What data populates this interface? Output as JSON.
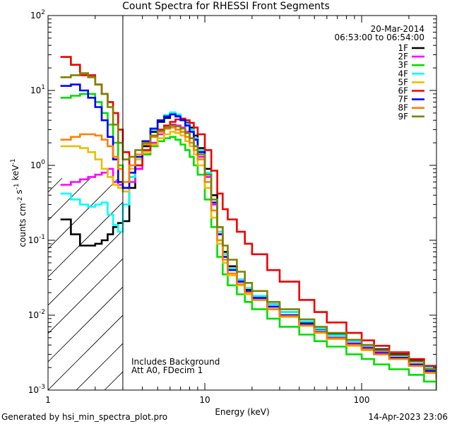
{
  "chart_data": {
    "type": "line",
    "title": "Count Spectra for RHESSI Front Segments",
    "xlabel": "Energy (keV)",
    "ylabel": "counts cm-2 s-1 keV-1",
    "xscale": "log",
    "yscale": "log",
    "xlim": [
      1,
      300
    ],
    "ylim": [
      0.001,
      100
    ],
    "xtick_labels": [
      "1",
      "10",
      "100"
    ],
    "ytick_labels": [
      "10^-3",
      "10^-2",
      "10^-1",
      "10^0",
      "10^1",
      "10^2"
    ],
    "date": "20-Mar-2014",
    "time_range": "06:53:00 to 06:54:00",
    "hatched_region_keV": [
      1,
      3
    ],
    "legend": [
      {
        "name": "1F",
        "color": "#000000"
      },
      {
        "name": "2F",
        "color": "#ff00ff"
      },
      {
        "name": "3F",
        "color": "#00dd00"
      },
      {
        "name": "4F",
        "color": "#00ffff"
      },
      {
        "name": "5F",
        "color": "#e8c000"
      },
      {
        "name": "6F",
        "color": "#ee0000"
      },
      {
        "name": "7F",
        "color": "#0000ff"
      },
      {
        "name": "8F",
        "color": "#ff8000"
      },
      {
        "name": "9F",
        "color": "#808000"
      }
    ],
    "annotations": [
      "Includes Background",
      "Att A0, FDecim 1"
    ],
    "series": [
      {
        "name": "1F",
        "x": [
          1.2,
          1.4,
          1.6,
          1.8,
          2.0,
          2.2,
          2.4,
          2.6,
          2.8,
          3.0,
          3.3,
          3.6,
          4.0,
          4.5,
          5.0,
          5.5,
          6.0,
          6.5,
          7.0,
          7.5,
          8.0,
          8.5,
          9.0,
          10,
          11,
          12,
          13,
          14,
          16,
          18,
          20,
          25,
          30,
          40,
          50,
          60,
          80,
          100,
          120,
          150,
          200,
          250,
          300
        ],
        "y": [
          0.19,
          0.12,
          0.085,
          0.085,
          0.09,
          0.1,
          0.12,
          0.15,
          0.17,
          0.18,
          0.5,
          0.9,
          1.8,
          2.8,
          3.8,
          4.3,
          4.8,
          4.6,
          4.2,
          3.7,
          3.2,
          2.5,
          1.7,
          0.9,
          0.4,
          0.15,
          0.07,
          0.045,
          0.03,
          0.022,
          0.018,
          0.014,
          0.011,
          0.008,
          0.0065,
          0.0055,
          0.0045,
          0.004,
          0.0035,
          0.003,
          0.0025,
          0.002,
          0.0015
        ]
      },
      {
        "name": "2F",
        "x": [
          1.2,
          1.4,
          1.6,
          1.8,
          2.0,
          2.2,
          2.4,
          2.6,
          2.8,
          3.0,
          3.3,
          3.6,
          4.0,
          4.5,
          5.0,
          5.5,
          6.0,
          6.5,
          7.0,
          7.5,
          8.0,
          8.5,
          9.0,
          10,
          11,
          12,
          13,
          14,
          16,
          18,
          20,
          25,
          30,
          40,
          50,
          60,
          80,
          100,
          120,
          150,
          200,
          250,
          300
        ],
        "y": [
          0.55,
          0.6,
          0.65,
          0.7,
          0.75,
          0.8,
          0.9,
          0.6,
          0.55,
          0.5,
          0.6,
          0.9,
          1.4,
          2.0,
          2.6,
          3.1,
          3.5,
          3.4,
          3.2,
          2.8,
          2.3,
          1.8,
          1.3,
          0.7,
          0.3,
          0.12,
          0.06,
          0.04,
          0.028,
          0.021,
          0.017,
          0.013,
          0.01,
          0.0075,
          0.006,
          0.005,
          0.0042,
          0.0037,
          0.0032,
          0.0027,
          0.0022,
          0.0018,
          0.0014
        ]
      },
      {
        "name": "3F",
        "x": [
          1.2,
          1.4,
          1.6,
          1.8,
          2.0,
          2.2,
          2.4,
          2.6,
          2.8,
          3.0,
          3.3,
          3.6,
          4.0,
          4.5,
          5.0,
          5.5,
          6.0,
          6.5,
          7.0,
          7.5,
          8.0,
          8.5,
          9.0,
          10,
          11,
          12,
          13,
          14,
          16,
          18,
          20,
          25,
          30,
          40,
          50,
          60,
          80,
          100,
          120,
          150,
          200,
          250,
          300
        ],
        "y": [
          8.0,
          8.5,
          9.0,
          9.0,
          7.0,
          5.0,
          3.5,
          2.0,
          1.0,
          0.45,
          0.7,
          1.0,
          1.4,
          1.8,
          2.1,
          2.3,
          2.4,
          2.2,
          1.9,
          1.6,
          1.3,
          1.0,
          0.75,
          0.35,
          0.15,
          0.06,
          0.035,
          0.025,
          0.019,
          0.015,
          0.012,
          0.009,
          0.007,
          0.0055,
          0.0045,
          0.0038,
          0.003,
          0.0026,
          0.0022,
          0.0019,
          0.0016,
          0.0013,
          0.001
        ]
      },
      {
        "name": "4F",
        "x": [
          1.2,
          1.4,
          1.6,
          1.8,
          2.0,
          2.2,
          2.4,
          2.6,
          2.8,
          3.0,
          3.3,
          3.6,
          4.0,
          4.5,
          5.0,
          5.5,
          6.0,
          6.5,
          7.0,
          7.5,
          8.0,
          8.5,
          9.0,
          10,
          11,
          12,
          13,
          14,
          16,
          18,
          20,
          25,
          30,
          40,
          50,
          60,
          80,
          100,
          120,
          150,
          200,
          250,
          300
        ],
        "y": [
          0.42,
          0.35,
          0.3,
          0.28,
          0.3,
          0.32,
          0.22,
          0.16,
          0.13,
          0.3,
          0.7,
          1.2,
          2.0,
          3.0,
          4.0,
          4.7,
          5.1,
          4.8,
          4.2,
          3.6,
          3.0,
          2.3,
          1.6,
          0.8,
          0.35,
          0.13,
          0.065,
          0.042,
          0.03,
          0.023,
          0.018,
          0.014,
          0.011,
          0.0082,
          0.0066,
          0.0054,
          0.0045,
          0.0039,
          0.0034,
          0.0029,
          0.0024,
          0.002,
          0.0016
        ]
      },
      {
        "name": "5F",
        "x": [
          1.2,
          1.4,
          1.6,
          1.8,
          2.0,
          2.2,
          2.4,
          2.6,
          2.8,
          3.0,
          3.3,
          3.6,
          4.0,
          4.5,
          5.0,
          5.5,
          6.0,
          6.5,
          7.0,
          7.5,
          8.0,
          8.5,
          9.0,
          10,
          11,
          12,
          13,
          14,
          16,
          18,
          20,
          25,
          30,
          40,
          50,
          60,
          80,
          100,
          120,
          150,
          200,
          250,
          300
        ],
        "y": [
          1.8,
          1.8,
          1.7,
          1.5,
          1.2,
          0.9,
          0.7,
          0.55,
          0.5,
          0.45,
          0.9,
          1.2,
          1.5,
          1.9,
          2.3,
          2.6,
          2.8,
          2.7,
          2.5,
          2.1,
          1.8,
          1.4,
          1.0,
          0.5,
          0.2,
          0.09,
          0.05,
          0.034,
          0.025,
          0.019,
          0.016,
          0.012,
          0.0095,
          0.0072,
          0.0058,
          0.0048,
          0.0039,
          0.0034,
          0.003,
          0.0026,
          0.0021,
          0.0017,
          0.0014
        ]
      },
      {
        "name": "6F",
        "x": [
          1.2,
          1.4,
          1.6,
          1.8,
          2.0,
          2.2,
          2.4,
          2.6,
          2.8,
          3.0,
          3.3,
          3.6,
          4.0,
          4.5,
          5.0,
          5.5,
          6.0,
          6.5,
          7.0,
          7.5,
          8.0,
          8.5,
          9.0,
          10,
          11,
          12,
          13,
          14,
          16,
          18,
          20,
          25,
          30,
          40,
          50,
          60,
          80,
          100,
          120,
          150,
          200,
          250,
          300
        ],
        "y": [
          28,
          22,
          16,
          16,
          12,
          9,
          7,
          5,
          3,
          1.5,
          0.8,
          1.0,
          1.6,
          2.4,
          3.0,
          3.4,
          3.8,
          4.1,
          4.2,
          4.0,
          3.7,
          3.2,
          2.6,
          1.6,
          0.85,
          0.42,
          0.26,
          0.19,
          0.13,
          0.09,
          0.065,
          0.04,
          0.028,
          0.016,
          0.011,
          0.008,
          0.0058,
          0.0046,
          0.0039,
          0.0032,
          0.0026,
          0.0021,
          0.0017
        ]
      },
      {
        "name": "7F",
        "x": [
          1.2,
          1.4,
          1.6,
          1.8,
          2.0,
          2.2,
          2.4,
          2.6,
          2.8,
          3.0,
          3.3,
          3.6,
          4.0,
          4.5,
          5.0,
          5.5,
          6.0,
          6.5,
          7.0,
          7.5,
          8.0,
          8.5,
          9.0,
          10,
          11,
          12,
          13,
          14,
          16,
          18,
          20,
          25,
          30,
          40,
          50,
          60,
          80,
          100,
          120,
          150,
          200,
          250,
          300
        ],
        "y": [
          11.5,
          12.0,
          10,
          8,
          6,
          4,
          2.4,
          1.2,
          0.6,
          0.5,
          0.8,
          1.3,
          2.1,
          3.1,
          4.0,
          4.5,
          4.8,
          4.5,
          4.0,
          3.4,
          2.8,
          2.2,
          1.5,
          0.75,
          0.32,
          0.12,
          0.06,
          0.04,
          0.028,
          0.021,
          0.017,
          0.013,
          0.01,
          0.0076,
          0.006,
          0.005,
          0.0041,
          0.0036,
          0.0031,
          0.0027,
          0.0022,
          0.0018,
          0.0014
        ]
      },
      {
        "name": "8F",
        "x": [
          1.2,
          1.4,
          1.6,
          1.8,
          2.0,
          2.2,
          2.4,
          2.6,
          2.8,
          3.0,
          3.3,
          3.6,
          4.0,
          4.5,
          5.0,
          5.5,
          6.0,
          6.5,
          7.0,
          7.5,
          8.0,
          8.5,
          9.0,
          10,
          11,
          12,
          13,
          14,
          16,
          18,
          20,
          25,
          30,
          40,
          50,
          60,
          80,
          100,
          120,
          150,
          200,
          250,
          300
        ],
        "y": [
          2.2,
          2.4,
          2.6,
          2.6,
          2.5,
          2.2,
          1.8,
          1.3,
          0.9,
          0.6,
          1.0,
          1.4,
          1.9,
          2.4,
          2.8,
          3.1,
          3.2,
          3.0,
          2.8,
          2.4,
          2.0,
          1.6,
          1.2,
          0.6,
          0.25,
          0.1,
          0.055,
          0.036,
          0.026,
          0.02,
          0.016,
          0.012,
          0.0097,
          0.0073,
          0.0059,
          0.0049,
          0.004,
          0.0035,
          0.003,
          0.0026,
          0.0021,
          0.0017,
          0.0014
        ]
      },
      {
        "name": "9F",
        "x": [
          1.2,
          1.4,
          1.6,
          1.8,
          2.0,
          2.2,
          2.4,
          2.6,
          2.8,
          3.0,
          3.3,
          3.6,
          4.0,
          4.5,
          5.0,
          5.5,
          6.0,
          6.5,
          7.0,
          7.5,
          8.0,
          8.5,
          9.0,
          10,
          11,
          12,
          13,
          14,
          16,
          18,
          20,
          25,
          30,
          40,
          50,
          60,
          80,
          100,
          120,
          150,
          200,
          250,
          300
        ],
        "y": [
          15,
          16,
          17,
          15,
          12,
          9,
          6,
          3.5,
          2.0,
          1.2,
          1.3,
          1.6,
          2.0,
          2.5,
          2.9,
          3.2,
          3.4,
          3.3,
          3.1,
          2.7,
          2.3,
          1.8,
          1.4,
          0.75,
          0.35,
          0.15,
          0.085,
          0.055,
          0.038,
          0.027,
          0.021,
          0.015,
          0.012,
          0.0088,
          0.007,
          0.0058,
          0.0047,
          0.004,
          0.0034,
          0.0029,
          0.0024,
          0.0019,
          0.0015
        ]
      }
    ]
  },
  "footer": {
    "generated_by": "Generated by hsi_min_spectra_plot.pro",
    "timestamp": "14-Apr-2023 23:06"
  }
}
